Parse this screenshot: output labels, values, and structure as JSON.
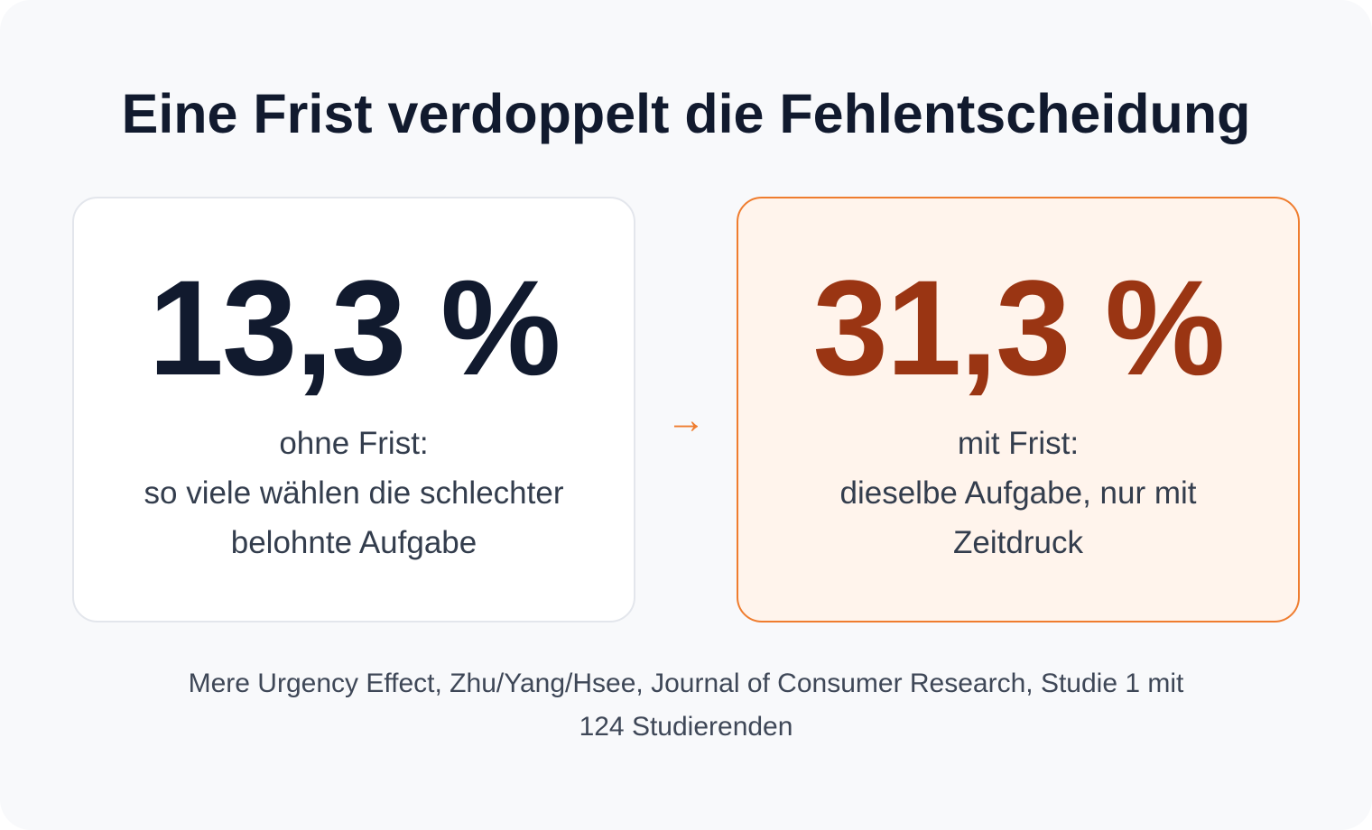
{
  "title": "Eine Frist verdoppelt die Fehlentscheidung",
  "left_card": {
    "value": "13,3 %",
    "caption_line1": "ohne Frist:",
    "caption_line2": "so viele wählen die schlechter",
    "caption_line3": "belohnte Aufgabe"
  },
  "arrow": "→",
  "right_card": {
    "value": "31,3 %",
    "caption_line1": "mit Frist:",
    "caption_line2": "dieselbe Aufgabe, nur mit",
    "caption_line3": "Zeitdruck"
  },
  "source": {
    "line1": "Mere Urgency Effect, Zhu/Yang/Hsee, Journal of Consumer Research, Studie 1 mit",
    "line2": "124 Studierenden"
  },
  "colors": {
    "background": "#f8f9fb",
    "title": "#111a2e",
    "accent": "#ef7d2f",
    "highlight_value": "#9a3513",
    "highlight_card": "#fff4ec"
  }
}
